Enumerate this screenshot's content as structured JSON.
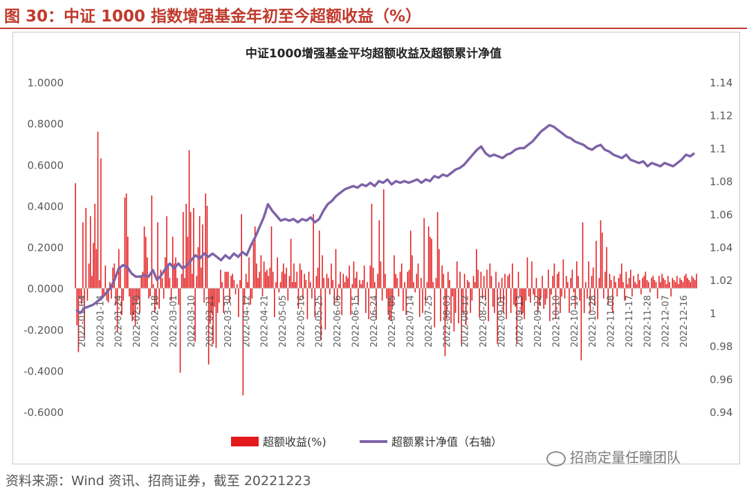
{
  "figure_title": "图 30：中证 1000 指数增强基金年初至今超额收益（%）",
  "source": "资料来源：Wind 资讯、招商证券，截至 20221223",
  "watermark": "招商定量任瞳团队",
  "colors": {
    "accent": "#c0392b",
    "bar": "#e31a1c",
    "line": "#7d63a8"
  },
  "chart_data": {
    "type": "bar",
    "title": "中证1000增强基金平均超额收益及超额累计净值",
    "left_axis": {
      "ylim": [
        -0.6,
        1.0
      ],
      "ticks": [
        "1.0000",
        "0.8000",
        "0.6000",
        "0.4000",
        "0.2000",
        "0.0000",
        "-0.2000",
        "-0.4000",
        "-0.6000"
      ]
    },
    "right_axis": {
      "ylim": [
        0.94,
        1.14
      ],
      "ticks": [
        "1.14",
        "1.12",
        "1.1",
        "1.08",
        "1.06",
        "1.04",
        "1.02",
        "1",
        "0.98",
        "0.96",
        "0.94"
      ]
    },
    "x_tick_labels": [
      "2022-01-04",
      "2022-01-14",
      "2022-01-24",
      "2022-02-10",
      "2022-02-18",
      "2022-03-01",
      "2022-03-10",
      "2022-03-21",
      "2022-03-30",
      "2022-04-12",
      "2022-04-21",
      "2022-05-05",
      "2022-05-16",
      "2022-05-25",
      "2022-06-06",
      "2022-06-15",
      "2022-06-24",
      "2022-07-05",
      "2022-07-14",
      "2022-07-25",
      "2022-08-03",
      "2022-08-12",
      "2022-08-23",
      "2022-09-01",
      "2022-09-13",
      "2022-09-22",
      "2022-10-10",
      "2022-10-19",
      "2022-10-28",
      "2022-11-08",
      "2022-11-17",
      "2022-11-28",
      "2022-12-07",
      "2022-12-16"
    ],
    "series": [
      {
        "name": "超额收益(%)",
        "axis": "left",
        "kind": "bar",
        "values": [
          0.51,
          -0.18,
          -0.31,
          -0.05,
          -0.08,
          0.32,
          -0.24,
          0.39,
          -0.06,
          0.12,
          0.35,
          0.06,
          0.22,
          0.41,
          0.19,
          0.76,
          0.04,
          0.63,
          -0.05,
          -0.03,
          0.11,
          -0.06,
          -0.07,
          0.03,
          -0.05,
          0.1,
          0.12,
          -0.08,
          -0.21,
          0.19,
          0.1,
          -0.13,
          -0.06,
          0.44,
          0.46,
          0.25,
          -0.04,
          -0.13,
          -0.16,
          -0.13,
          -0.18,
          -0.08,
          -0.05,
          -0.12,
          0.06,
          0.08,
          0.3,
          0.25,
          0.15,
          -0.05,
          -0.04,
          0.45,
          0.02,
          -0.12,
          -0.08,
          0.32,
          -0.1,
          0.09,
          0.05,
          -0.05,
          0.15,
          0.35,
          0.12,
          0.05,
          -0.06,
          0.25,
          0.12,
          0.15,
          0.05,
          -0.08,
          -0.41,
          0.07,
          0.37,
          0.05,
          0.41,
          0.25,
          0.67,
          0.37,
          0.07,
          0.39,
          -0.26,
          0.06,
          0.2,
          0.35,
          0.1,
          0.31,
          -0.07,
          0.46,
          0.4,
          -0.37,
          -0.17,
          -0.12,
          -0.27,
          -0.09,
          -0.29,
          -0.12,
          -0.07,
          0.09,
          0.03,
          -0.12,
          0.08,
          0.08,
          0.08,
          -0.07,
          0.06,
          0.07,
          0.04,
          -0.03,
          0.02,
          -0.14,
          0.04,
          0.36,
          -0.52,
          -0.08,
          0.07,
          0.03,
          0.15,
          -0.08,
          -0.05,
          0.22,
          0.3,
          0.12,
          0.05,
          0.08,
          0.16,
          -0.04,
          0.13,
          0.08,
          0.09,
          0.06,
          0.1,
          0.3,
          0.08,
          -0.14,
          0.03,
          0.15,
          -0.02,
          0.03,
          0.08,
          0.12,
          0.07,
          0.1,
          -0.06,
          0.06,
          0.24,
          0.03,
          0.12,
          0.03,
          0.08,
          -0.1,
          0.12,
          0.09,
          -0.05,
          0.07,
          0.04,
          -0.15,
          0.08,
          0.03,
          -0.05,
          0.36,
          -0.14,
          0.06,
          0.1,
          0.28,
          -0.25,
          0.16,
          0.05,
          -0.2,
          0.07,
          0.05,
          -0.03,
          0.12,
          0.04,
          -0.08,
          0.19,
          -0.06,
          0.02,
          0.08,
          -0.13,
          0.07,
          0.03,
          0.06,
          0.05,
          0.11,
          -0.13,
          0.02,
          0.13,
          0.05,
          0.08,
          -0.08,
          0.04,
          0.02,
          0.04,
          0.11,
          -0.12,
          0.03,
          -0.15,
          0.11,
          0.41,
          0.1,
          0.03,
          -0.15,
          0.07,
          0.33,
          0.13,
          -0.06,
          0.48,
          0.07,
          -0.05,
          -0.13,
          -0.15,
          -0.16,
          -0.09,
          0.16,
          0.07,
          0.05,
          -0.04,
          0.08,
          0.12,
          -0.11,
          0.03,
          -0.13,
          0.08,
          0.09,
          0.28,
          0.16,
          0.03,
          -0.02,
          0.07,
          0.12,
          -0.14,
          0.05,
          -0.12,
          0.34,
          -0.07,
          0.03,
          0.3,
          0.25,
          0.24,
          0.03,
          -0.19,
          0.05,
          0.37,
          0.19,
          -0.16,
          0.11,
          0.07,
          -0.33,
          -0.15,
          0.08,
          0.04,
          -0.17,
          -0.04,
          -0.21,
          -0.12,
          0.13,
          -0.17,
          0.08,
          -0.28,
          -0.12,
          0.07,
          -0.18,
          0.04,
          0.03,
          -0.12,
          -0.06,
          0.06,
          0.03,
          0.19,
          0.09,
          -0.14,
          0.08,
          -0.05,
          0.06,
          -0.06,
          0.09,
          -0.16,
          0.12,
          0.06,
          -0.09,
          -0.12,
          0.08,
          -0.27,
          0.03,
          -0.07,
          0.05,
          -0.12,
          0.07,
          -0.15,
          0.06,
          0.07,
          -0.12,
          0.12,
          -0.08,
          -0.09,
          -0.27,
          0.08,
          -0.04,
          -0.13,
          -0.12,
          -0.15,
          -0.06,
          0.15,
          -0.04,
          -0.07,
          0.13,
          -0.03,
          -0.04,
          0.05,
          -0.12,
          -0.08,
          -0.05,
          0.06,
          -0.1,
          -0.08,
          -0.05,
          0.09,
          -0.16,
          -0.03,
          0.06,
          0.12,
          -0.15,
          0.07,
          0.08,
          -0.12,
          -0.04,
          0.14,
          -0.05,
          0.06,
          0.03,
          -0.12,
          0.05,
          0.09,
          -0.02,
          -0.1,
          0.13,
          0.06,
          -0.06,
          -0.35,
          0.32,
          -0.12,
          0.03,
          -0.05,
          0.13,
          -0.12,
          0.06,
          0.1,
          -0.08,
          0.23,
          -0.15,
          0.05,
          0.33,
          0.27,
          -0.05,
          0.08,
          0.2,
          -0.08,
          0.07,
          0.04,
          -0.12,
          0.06,
          0.03,
          -0.04,
          0.05,
          0.07,
          0.12,
          0.03,
          -0.06,
          0.08,
          0.02,
          0.05,
          0.09,
          -0.04,
          0.06,
          0.03,
          0.02,
          0.07,
          0.04,
          -0.03,
          0.05,
          0.06,
          0.08,
          0.04,
          0.03,
          -0.02,
          0.05,
          0.06,
          0.04,
          0.03,
          -0.05,
          0.06,
          0.03,
          0.07,
          0.05,
          0.04,
          0.02,
          0.06,
          0.03,
          -0.04,
          0.05,
          0.04,
          0.03,
          0.06,
          0.02,
          0.05,
          0.04,
          0.03,
          0.06,
          0.07,
          0.05,
          0.04,
          0.03,
          0.06,
          0.05,
          0.04,
          0.07
        ]
      },
      {
        "name": "超额累计净值（右轴）",
        "axis": "right",
        "kind": "line",
        "values": [
          1.002,
          1.0,
          1.003,
          1.004,
          1.005,
          1.007,
          1.009,
          1.012,
          1.015,
          1.02,
          1.027,
          1.029,
          1.028,
          1.024,
          1.022,
          1.022,
          1.023,
          1.022,
          1.026,
          1.02,
          1.023,
          1.027,
          1.03,
          1.027,
          1.03,
          1.027,
          1.029,
          1.032,
          1.035,
          1.033,
          1.036,
          1.034,
          1.036,
          1.034,
          1.032,
          1.035,
          1.033,
          1.036,
          1.034,
          1.037,
          1.035,
          1.041,
          1.046,
          1.052,
          1.058,
          1.066,
          1.062,
          1.059,
          1.056,
          1.057,
          1.056,
          1.057,
          1.055,
          1.057,
          1.056,
          1.058,
          1.055,
          1.057,
          1.062,
          1.066,
          1.068,
          1.071,
          1.073,
          1.075,
          1.076,
          1.077,
          1.076,
          1.078,
          1.077,
          1.079,
          1.077,
          1.08,
          1.079,
          1.081,
          1.078,
          1.08,
          1.079,
          1.08,
          1.079,
          1.08,
          1.081,
          1.079,
          1.081,
          1.08,
          1.083,
          1.082,
          1.084,
          1.083,
          1.085,
          1.087,
          1.088,
          1.09,
          1.093,
          1.096,
          1.099,
          1.101,
          1.097,
          1.095,
          1.096,
          1.095,
          1.094,
          1.096,
          1.097,
          1.099,
          1.1,
          1.1,
          1.102,
          1.104,
          1.107,
          1.11,
          1.112,
          1.114,
          1.113,
          1.111,
          1.109,
          1.107,
          1.106,
          1.104,
          1.103,
          1.102,
          1.1,
          1.099,
          1.101,
          1.102,
          1.099,
          1.098,
          1.096,
          1.095,
          1.094,
          1.096,
          1.093,
          1.092,
          1.091,
          1.092,
          1.089,
          1.091,
          1.09,
          1.089,
          1.091,
          1.09,
          1.089,
          1.091,
          1.093,
          1.096,
          1.095,
          1.097
        ]
      }
    ],
    "legend": "bottom-center"
  }
}
